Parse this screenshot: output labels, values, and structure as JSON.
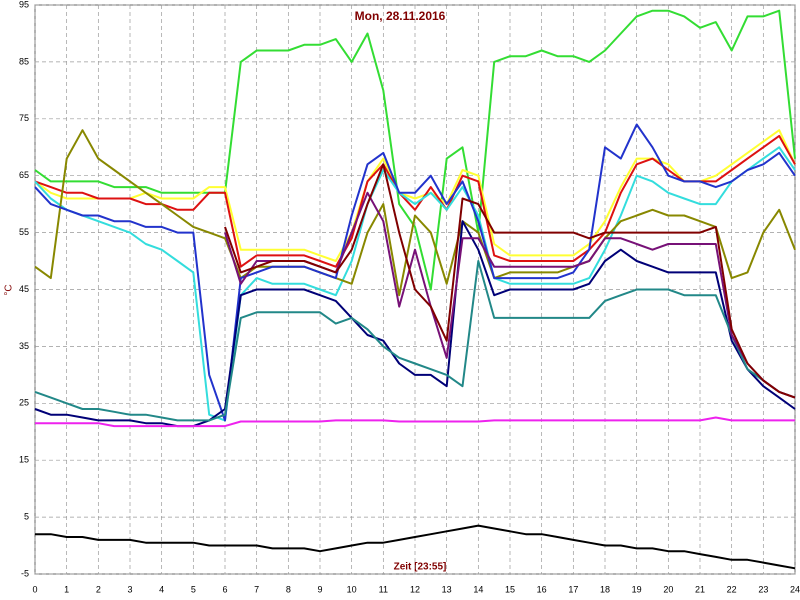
{
  "chart_data": {
    "type": "line",
    "title": "Mon, 28.11.2016",
    "xlabel": "Zeit [23:55]",
    "ylabel": "°C",
    "xlim": [
      0,
      24
    ],
    "ylim": [
      -5,
      95
    ],
    "xticks": [
      0,
      1,
      2,
      3,
      4,
      5,
      6,
      7,
      8,
      9,
      10,
      11,
      12,
      13,
      14,
      15,
      16,
      17,
      18,
      19,
      20,
      21,
      22,
      23,
      24
    ],
    "yticks": [
      -5,
      5,
      15,
      25,
      35,
      45,
      55,
      65,
      75,
      85,
      95
    ],
    "grid": true,
    "x": [
      0,
      0.5,
      1,
      1.5,
      2,
      2.5,
      3,
      3.5,
      4,
      4.5,
      5,
      5.5,
      6,
      6.5,
      7,
      7.5,
      8,
      8.5,
      9,
      9.5,
      10,
      10.5,
      11,
      11.5,
      12,
      12.5,
      13,
      13.5,
      14,
      14.5,
      15,
      15.5,
      16,
      16.5,
      17,
      17.5,
      18,
      18.5,
      19,
      19.5,
      20,
      20.5,
      21,
      21.5,
      22,
      22.5,
      23,
      23.5,
      24
    ],
    "series": [
      {
        "color": "#33dd33",
        "values": [
          66,
          64,
          64,
          64,
          64,
          63,
          63,
          63,
          62,
          62,
          62,
          62,
          62,
          85,
          87,
          87,
          87,
          88,
          88,
          89,
          85,
          90,
          80,
          60,
          56,
          45,
          68,
          70,
          55,
          85,
          86,
          86,
          87,
          86,
          86,
          85,
          87,
          90,
          93,
          94,
          94,
          93,
          91,
          92,
          87,
          93,
          93,
          94,
          68
        ]
      },
      {
        "color": "#ffff33",
        "values": [
          64,
          62,
          61,
          61,
          61,
          61,
          61,
          62,
          61,
          61,
          61,
          63,
          63,
          52,
          52,
          52,
          52,
          52,
          51,
          50,
          55,
          64,
          68,
          62,
          61,
          62,
          60,
          66,
          65,
          53,
          51,
          51,
          51,
          51,
          51,
          53,
          57,
          63,
          68,
          68,
          67,
          64,
          64,
          65,
          67,
          69,
          71,
          73,
          67
        ]
      },
      {
        "color": "#dd1111",
        "values": [
          64,
          63,
          62,
          62,
          61,
          61,
          61,
          60,
          60,
          59,
          59,
          62,
          62,
          49,
          51,
          51,
          51,
          51,
          50,
          49,
          54,
          64,
          67,
          62,
          59,
          63,
          59,
          65,
          64,
          51,
          50,
          50,
          50,
          50,
          50,
          52,
          55,
          62,
          67,
          68,
          66,
          64,
          64,
          64,
          66,
          68,
          70,
          72,
          67
        ]
      },
      {
        "color": "#33dddd",
        "values": [
          64,
          61,
          59,
          58,
          57,
          56,
          55,
          53,
          52,
          50,
          48,
          23,
          22,
          44,
          47,
          46,
          46,
          46,
          45,
          44,
          50,
          60,
          66,
          62,
          60,
          62,
          59,
          63,
          58,
          47,
          46,
          46,
          46,
          46,
          46,
          47,
          52,
          58,
          65,
          64,
          62,
          61,
          60,
          60,
          64,
          66,
          68,
          70,
          66
        ]
      },
      {
        "color": "#888800",
        "values": [
          49,
          47,
          68,
          73,
          68,
          66,
          64,
          62,
          60,
          58,
          56,
          55,
          54,
          47,
          49,
          49,
          49,
          49,
          48,
          47,
          46,
          55,
          60,
          44,
          58,
          55,
          46,
          57,
          55,
          47,
          48,
          48,
          48,
          48,
          49,
          50,
          54,
          57,
          58,
          59,
          58,
          58,
          57,
          56,
          47,
          48,
          55,
          59,
          52
        ]
      },
      {
        "color": "#2233cc",
        "values": [
          63,
          60,
          59,
          58,
          58,
          57,
          57,
          56,
          56,
          55,
          55,
          30,
          22,
          47,
          48,
          49,
          49,
          49,
          48,
          47,
          58,
          67,
          69,
          62,
          62,
          65,
          60,
          64,
          57,
          47,
          47,
          47,
          47,
          47,
          48,
          52,
          70,
          68,
          74,
          70,
          65,
          64,
          64,
          63,
          64,
          66,
          67,
          69,
          65
        ]
      },
      {
        "color": "#000077",
        "values": [
          24,
          23,
          23,
          22.5,
          22,
          22,
          22,
          21.5,
          21.5,
          21,
          21,
          22,
          24,
          44,
          45,
          45,
          45,
          45,
          44,
          43,
          40,
          37,
          36,
          32,
          30,
          30,
          28,
          57,
          52,
          44,
          45,
          45,
          45,
          45,
          45,
          46,
          50,
          52,
          50,
          49,
          48,
          48,
          48,
          48,
          36,
          31,
          28,
          26,
          24
        ]
      },
      {
        "color": "#228888",
        "values": [
          27,
          26,
          25,
          24,
          24,
          23.5,
          23,
          23,
          22.5,
          22,
          22,
          22,
          23,
          40,
          41,
          41,
          41,
          41,
          41,
          39,
          40,
          38,
          35,
          33,
          32,
          31,
          30,
          28,
          50,
          40,
          40,
          40,
          40,
          40,
          40,
          40,
          43,
          44,
          45,
          45,
          45,
          44,
          44,
          44,
          37,
          31,
          29,
          27,
          26
        ]
      },
      {
        "color": "#771177",
        "values": [
          null,
          null,
          null,
          null,
          null,
          null,
          null,
          null,
          null,
          null,
          null,
          null,
          55,
          46,
          50,
          50,
          50,
          50,
          49,
          48,
          55,
          62,
          57,
          42,
          52,
          42,
          33,
          54,
          54,
          49,
          49,
          49,
          49,
          49,
          49,
          50,
          54,
          54,
          53,
          52,
          53,
          53,
          53,
          53,
          37,
          32,
          29,
          27,
          26
        ]
      },
      {
        "color": "#800000",
        "values": [
          null,
          null,
          null,
          null,
          null,
          null,
          null,
          null,
          null,
          null,
          null,
          null,
          56,
          48,
          49,
          50,
          50,
          50,
          49,
          48,
          52,
          60,
          67,
          55,
          45,
          42,
          36,
          61,
          60,
          55,
          55,
          55,
          55,
          55,
          55,
          54,
          55,
          55,
          55,
          55,
          55,
          55,
          55,
          56,
          38,
          32,
          29,
          27,
          26
        ]
      },
      {
        "color": "#ee22ee",
        "values": [
          21.5,
          21.5,
          21.5,
          21.5,
          21.5,
          21,
          21,
          21,
          21,
          21,
          21,
          21,
          21,
          21.8,
          21.8,
          21.8,
          21.8,
          21.8,
          21.8,
          22,
          22,
          22,
          22,
          21.8,
          21.8,
          21.8,
          21.8,
          21.8,
          21.8,
          22,
          22,
          22,
          22,
          22,
          22,
          22,
          22,
          22,
          22,
          22,
          22,
          22,
          22,
          22.5,
          22,
          22,
          22,
          22,
          22
        ]
      },
      {
        "color": "#000000",
        "values": [
          2,
          2,
          1.5,
          1.5,
          1,
          1,
          1,
          0.5,
          0.5,
          0.5,
          0.5,
          0,
          0,
          0,
          0,
          -0.5,
          -0.5,
          -0.5,
          -1,
          -0.5,
          0,
          0.5,
          0.5,
          1,
          1.5,
          2,
          2.5,
          3,
          3.5,
          3,
          2.5,
          2,
          2,
          1.5,
          1,
          0.5,
          0,
          0,
          -0.5,
          -0.5,
          -1,
          -1,
          -1.5,
          -2,
          -2.5,
          -2.5,
          -3,
          -3.5,
          -4
        ]
      }
    ]
  }
}
